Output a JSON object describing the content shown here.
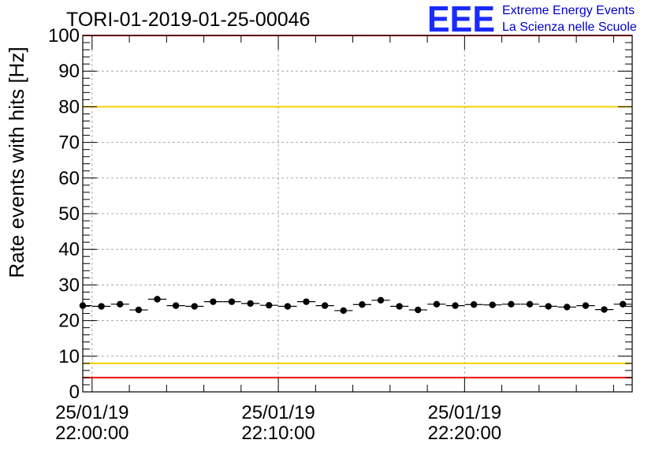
{
  "chart_data": {
    "type": "scatter",
    "title": "TORI-01-2019-01-25-00046",
    "ylabel": "Rate events with hits [Hz]",
    "xlabel": "",
    "ylim": [
      0,
      100
    ],
    "yticks": [
      0,
      10,
      20,
      30,
      40,
      50,
      60,
      70,
      80,
      90,
      100
    ],
    "xrange": [
      "2019-01-25T21:59:30",
      "2019-01-25T22:29:00"
    ],
    "xticks": [
      {
        "time": "2019-01-25T22:00:00",
        "date_label": "25/01/19",
        "time_label": "22:00:00"
      },
      {
        "time": "2019-01-25T22:10:00",
        "date_label": "25/01/19",
        "time_label": "22:10:00"
      },
      {
        "time": "2019-01-25T22:20:00",
        "date_label": "25/01/19",
        "time_label": "22:20:00"
      }
    ],
    "grid": true,
    "reference_lines": [
      {
        "y": 80,
        "color": "#f5d000"
      },
      {
        "y": 8,
        "color": "#f5d000"
      },
      {
        "y": 100,
        "color": "#ee1111"
      },
      {
        "y": 4,
        "color": "#ee1111"
      }
    ],
    "series": [
      {
        "marker_color": "#000000",
        "x": [
          "2019-01-25T21:59:30",
          "2019-01-25T22:00:30",
          "2019-01-25T22:01:30",
          "2019-01-25T22:02:30",
          "2019-01-25T22:03:30",
          "2019-01-25T22:04:30",
          "2019-01-25T22:05:30",
          "2019-01-25T22:06:30",
          "2019-01-25T22:07:30",
          "2019-01-25T22:08:30",
          "2019-01-25T22:09:30",
          "2019-01-25T22:10:30",
          "2019-01-25T22:11:30",
          "2019-01-25T22:12:30",
          "2019-01-25T22:13:30",
          "2019-01-25T22:14:30",
          "2019-01-25T22:15:30",
          "2019-01-25T22:16:30",
          "2019-01-25T22:17:30",
          "2019-01-25T22:18:30",
          "2019-01-25T22:19:30",
          "2019-01-25T22:20:30",
          "2019-01-25T22:21:30",
          "2019-01-25T22:22:30",
          "2019-01-25T22:23:30",
          "2019-01-25T22:24:30",
          "2019-01-25T22:25:30",
          "2019-01-25T22:26:30",
          "2019-01-25T22:27:30",
          "2019-01-25T22:28:30"
        ],
        "y": [
          24.2,
          24.0,
          24.6,
          23.0,
          26.0,
          24.2,
          24.0,
          25.3,
          25.3,
          24.8,
          24.3,
          24.0,
          25.3,
          24.2,
          22.8,
          24.5,
          25.7,
          24.0,
          23.0,
          24.6,
          24.2,
          24.5,
          24.4,
          24.6,
          24.6,
          24.0,
          23.8,
          24.2,
          23.1,
          24.6
        ]
      }
    ]
  },
  "logo": {
    "mark": "EEE",
    "line1": "Extreme Energy Events",
    "line2": "La Scienza nelle Scuole",
    "color": "#1a2bff"
  }
}
